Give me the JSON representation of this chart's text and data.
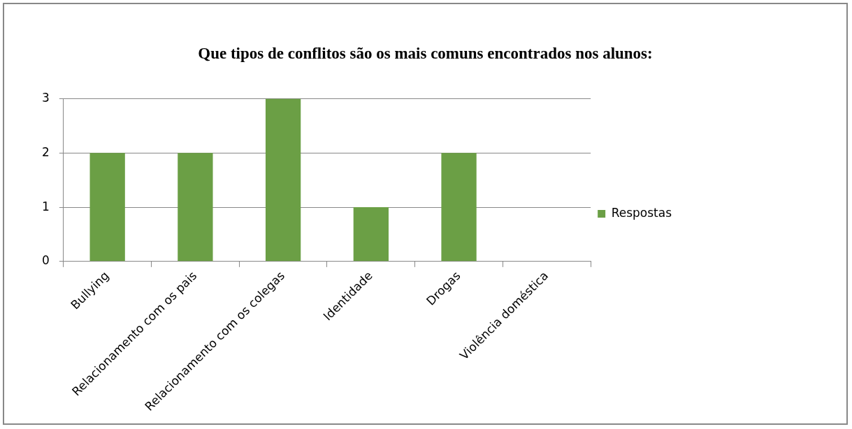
{
  "chart_data": {
    "type": "bar",
    "title": "Que tipos de conflitos são os mais comuns encontrados nos alunos:",
    "categories": [
      "Bullying",
      "Relacionamento com os pais",
      "Relacionamento com os colegas",
      "Identidade",
      "Drogas",
      "Violência doméstica"
    ],
    "series": [
      {
        "name": "Respostas",
        "color": "#6b9f45",
        "values": [
          2,
          2,
          3,
          1,
          2,
          0
        ]
      }
    ],
    "ylim": [
      0,
      3
    ],
    "yticks": [
      0,
      1,
      2,
      3
    ],
    "grid": "y",
    "legend": "right"
  }
}
